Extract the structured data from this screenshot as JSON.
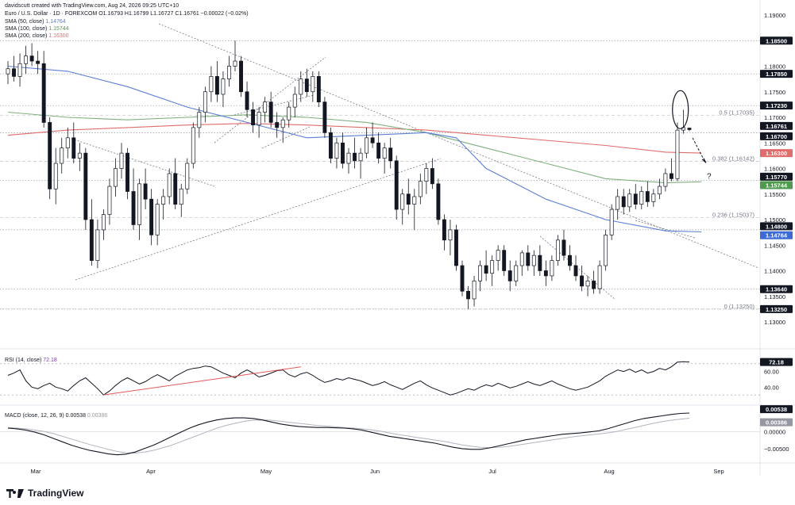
{
  "header": {
    "author_line": "davidscutt created with TradingView.com, Aug 24, 2026 09:25 UTC+10",
    "symbol_line": "Euro / U.S. Dollar · 1D · FOREXCOM  O1.16793  H1.16799  L1.16727  C1.16761  −0.00022 (−0.02%)",
    "sma_50": "SMA (50, close)",
    "sma_50_value": "1.14764",
    "sma_100": "SMA (100, close)",
    "sma_100_value": "1.15744",
    "sma_200": "SMA (200, close)",
    "sma_200_value": "1.16300"
  },
  "brand": {
    "name": "TradingView",
    "icon": "tradingview-logo-icon"
  },
  "colors": {
    "up": "#ffffff",
    "down": "#131722",
    "sma50": "#5b7fd6",
    "sma100": "#7fb07f",
    "sma200": "#e06c6c",
    "rsi_trend": "#e05a5a"
  },
  "chart_data": [
    {
      "type": "candlestick",
      "ylim": [
        1.13,
        1.19
      ],
      "y_ticks": [
        "1.19000",
        "1.18000",
        "1.17500",
        "1.17000",
        "1.16500",
        "1.16000",
        "1.15500",
        "1.15000",
        "1.14500",
        "1.14000",
        "1.13500",
        "1.13000"
      ],
      "x_ticks": [
        "Mar",
        "Apr",
        "May",
        "Jun",
        "Jul",
        "Aug",
        "Sep"
      ],
      "price_labels": [
        {
          "value": "1.18500",
          "style": "dark"
        },
        {
          "value": "1.17850",
          "style": "dark"
        },
        {
          "value": "1.17230",
          "style": "dark"
        },
        {
          "value": "1.16761",
          "style": "dark"
        },
        {
          "value": "1.16700",
          "style": "dark"
        },
        {
          "value": "1.16300",
          "style": "red"
        },
        {
          "value": "1.15770",
          "style": "dark"
        },
        {
          "value": "1.15744",
          "style": "green"
        },
        {
          "value": "1.14800",
          "style": "dark"
        },
        {
          "value": "1.14764",
          "style": "blue"
        },
        {
          "value": "1.13640",
          "style": "dark"
        },
        {
          "value": "1.13250",
          "style": "dark"
        }
      ],
      "horizontal_levels": [
        1.185,
        1.1785,
        1.1723,
        1.167,
        1.1577,
        1.148,
        1.1364,
        1.1325
      ],
      "fib_levels": [
        {
          "label": "0.5 (1.17035)",
          "value": 1.17035
        },
        {
          "label": "0.382 (1.16142)",
          "value": 1.16142
        },
        {
          "label": "0.236 (1.15037)",
          "value": 1.15037
        },
        {
          "label": "0 (1.13250)",
          "value": 1.1325
        }
      ],
      "annotation": "?",
      "candles": [
        [
          1.1785,
          1.181,
          1.1765,
          1.1795
        ],
        [
          1.1795,
          1.182,
          1.177,
          1.178
        ],
        [
          1.178,
          1.1825,
          1.176,
          1.1805
        ],
        [
          1.1805,
          1.184,
          1.1785,
          1.182
        ],
        [
          1.182,
          1.1845,
          1.18,
          1.181
        ],
        [
          1.181,
          1.183,
          1.1785,
          1.1805
        ],
        [
          1.1805,
          1.183,
          1.168,
          1.169
        ],
        [
          1.169,
          1.17,
          1.154,
          1.156
        ],
        [
          1.156,
          1.164,
          1.153,
          1.161
        ],
        [
          1.161,
          1.166,
          1.159,
          1.164
        ],
        [
          1.164,
          1.168,
          1.162,
          1.166
        ],
        [
          1.166,
          1.169,
          1.161,
          1.162
        ],
        [
          1.162,
          1.165,
          1.1595,
          1.163
        ],
        [
          1.163,
          1.164,
          1.148,
          1.15
        ],
        [
          1.15,
          1.154,
          1.141,
          1.142
        ],
        [
          1.142,
          1.15,
          1.1405,
          1.148
        ],
        [
          1.148,
          1.152,
          1.146,
          1.151
        ],
        [
          1.151,
          1.158,
          1.149,
          1.1565
        ],
        [
          1.1565,
          1.162,
          1.1545,
          1.16
        ],
        [
          1.16,
          1.165,
          1.158,
          1.163
        ],
        [
          1.163,
          1.164,
          1.154,
          1.1555
        ],
        [
          1.1555,
          1.16,
          1.148,
          1.149
        ],
        [
          1.149,
          1.158,
          1.146,
          1.157
        ],
        [
          1.157,
          1.16,
          1.152,
          1.154
        ],
        [
          1.154,
          1.156,
          1.145,
          1.147
        ],
        [
          1.147,
          1.154,
          1.145,
          1.153
        ],
        [
          1.153,
          1.156,
          1.15,
          1.1545
        ],
        [
          1.1545,
          1.16,
          1.153,
          1.159
        ],
        [
          1.159,
          1.162,
          1.152,
          1.153
        ],
        [
          1.153,
          1.157,
          1.1505,
          1.156
        ],
        [
          1.156,
          1.162,
          1.155,
          1.161
        ],
        [
          1.161,
          1.169,
          1.16,
          1.168
        ],
        [
          1.168,
          1.172,
          1.166,
          1.171
        ],
        [
          1.171,
          1.176,
          1.169,
          1.175
        ],
        [
          1.175,
          1.18,
          1.173,
          1.178
        ],
        [
          1.178,
          1.181,
          1.173,
          1.1745
        ],
        [
          1.1745,
          1.179,
          1.172,
          1.1775
        ],
        [
          1.1775,
          1.182,
          1.176,
          1.18
        ],
        [
          1.18,
          1.185,
          1.179,
          1.181
        ],
        [
          1.181,
          1.182,
          1.174,
          1.175
        ],
        [
          1.175,
          1.177,
          1.17,
          1.1715
        ],
        [
          1.1715,
          1.173,
          1.167,
          1.1685
        ],
        [
          1.1685,
          1.172,
          1.166,
          1.171
        ],
        [
          1.171,
          1.174,
          1.169,
          1.173
        ],
        [
          1.173,
          1.175,
          1.168,
          1.169
        ],
        [
          1.169,
          1.171,
          1.166,
          1.168
        ],
        [
          1.168,
          1.17,
          1.165,
          1.1695
        ],
        [
          1.1695,
          1.173,
          1.168,
          1.172
        ],
        [
          1.172,
          1.176,
          1.17,
          1.1745
        ],
        [
          1.1745,
          1.179,
          1.173,
          1.1775
        ],
        [
          1.1775,
          1.1795,
          1.174,
          1.175
        ],
        [
          1.175,
          1.179,
          1.173,
          1.178
        ],
        [
          1.178,
          1.179,
          1.172,
          1.173
        ],
        [
          1.173,
          1.174,
          1.166,
          1.167
        ],
        [
          1.167,
          1.168,
          1.161,
          1.162
        ],
        [
          1.162,
          1.166,
          1.16,
          1.165
        ],
        [
          1.165,
          1.167,
          1.16,
          1.161
        ],
        [
          1.161,
          1.164,
          1.159,
          1.163
        ],
        [
          1.163,
          1.166,
          1.16,
          1.1615
        ],
        [
          1.1615,
          1.164,
          1.158,
          1.163
        ],
        [
          1.163,
          1.168,
          1.162,
          1.166
        ],
        [
          1.166,
          1.169,
          1.164,
          1.165
        ],
        [
          1.165,
          1.167,
          1.161,
          1.162
        ],
        [
          1.162,
          1.165,
          1.159,
          1.164
        ],
        [
          1.164,
          1.166,
          1.16,
          1.1615
        ],
        [
          1.1615,
          1.1625,
          1.15,
          1.152
        ],
        [
          1.152,
          1.156,
          1.149,
          1.155
        ],
        [
          1.155,
          1.158,
          1.151,
          1.153
        ],
        [
          1.153,
          1.156,
          1.148,
          1.1545
        ],
        [
          1.1545,
          1.159,
          1.153,
          1.1575
        ],
        [
          1.1575,
          1.161,
          1.155,
          1.16
        ],
        [
          1.16,
          1.162,
          1.156,
          1.157
        ],
        [
          1.157,
          1.158,
          1.149,
          1.15
        ],
        [
          1.15,
          1.151,
          1.144,
          1.146
        ],
        [
          1.146,
          1.15,
          1.143,
          1.148
        ],
        [
          1.148,
          1.149,
          1.14,
          1.141
        ],
        [
          1.141,
          1.142,
          1.135,
          1.136
        ],
        [
          1.136,
          1.137,
          1.1325,
          1.1345
        ],
        [
          1.1345,
          1.139,
          1.133,
          1.138
        ],
        [
          1.138,
          1.142,
          1.136,
          1.141
        ],
        [
          1.141,
          1.144,
          1.138,
          1.1395
        ],
        [
          1.1395,
          1.143,
          1.137,
          1.142
        ],
        [
          1.142,
          1.145,
          1.14,
          1.144
        ],
        [
          1.144,
          1.145,
          1.139,
          1.14
        ],
        [
          1.14,
          1.142,
          1.136,
          1.138
        ],
        [
          1.138,
          1.142,
          1.137,
          1.141
        ],
        [
          1.141,
          1.144,
          1.139,
          1.1435
        ],
        [
          1.1435,
          1.145,
          1.14,
          1.141
        ],
        [
          1.141,
          1.144,
          1.139,
          1.143
        ],
        [
          1.143,
          1.145,
          1.139,
          1.14
        ],
        [
          1.14,
          1.142,
          1.137,
          1.139
        ],
        [
          1.139,
          1.143,
          1.138,
          1.142
        ],
        [
          1.142,
          1.147,
          1.141,
          1.146
        ],
        [
          1.146,
          1.148,
          1.142,
          1.143
        ],
        [
          1.143,
          1.145,
          1.14,
          1.141
        ],
        [
          1.141,
          1.143,
          1.138,
          1.139
        ],
        [
          1.139,
          1.141,
          1.136,
          1.137
        ],
        [
          1.137,
          1.139,
          1.135,
          1.138
        ],
        [
          1.138,
          1.14,
          1.1355,
          1.1365
        ],
        [
          1.1365,
          1.142,
          1.1355,
          1.141
        ],
        [
          1.141,
          1.148,
          1.14,
          1.147
        ],
        [
          1.147,
          1.153,
          1.146,
          1.152
        ],
        [
          1.152,
          1.156,
          1.15,
          1.1545
        ],
        [
          1.1545,
          1.156,
          1.151,
          1.1525
        ],
        [
          1.1525,
          1.156,
          1.1515,
          1.155
        ],
        [
          1.155,
          1.157,
          1.152,
          1.153
        ],
        [
          1.153,
          1.1565,
          1.152,
          1.1555
        ],
        [
          1.1555,
          1.1575,
          1.1525,
          1.1535
        ],
        [
          1.1535,
          1.156,
          1.1525,
          1.155
        ],
        [
          1.155,
          1.158,
          1.154,
          1.1565
        ],
        [
          1.1565,
          1.16,
          1.1555,
          1.159
        ],
        [
          1.159,
          1.162,
          1.1575,
          1.158
        ],
        [
          1.158,
          1.169,
          1.1575,
          1.1675
        ],
        [
          1.1675,
          1.1715,
          1.1668,
          1.168
        ],
        [
          1.1679,
          1.168,
          1.1673,
          1.1676
        ]
      ],
      "sma50_points": [
        [
          0,
          1.18
        ],
        [
          10,
          1.179
        ],
        [
          20,
          1.176
        ],
        [
          30,
          1.172
        ],
        [
          40,
          1.169
        ],
        [
          50,
          1.166
        ],
        [
          60,
          1.1665
        ],
        [
          70,
          1.167
        ],
        [
          75,
          1.166
        ],
        [
          80,
          1.16
        ],
        [
          90,
          1.154
        ],
        [
          100,
          1.15
        ],
        [
          110,
          1.1478
        ],
        [
          116,
          1.1476
        ]
      ],
      "sma100_points": [
        [
          0,
          1.171
        ],
        [
          10,
          1.17
        ],
        [
          20,
          1.1695
        ],
        [
          30,
          1.17
        ],
        [
          40,
          1.1705
        ],
        [
          50,
          1.17
        ],
        [
          60,
          1.169
        ],
        [
          70,
          1.167
        ],
        [
          80,
          1.164
        ],
        [
          90,
          1.161
        ],
        [
          100,
          1.158
        ],
        [
          110,
          1.1572
        ],
        [
          116,
          1.1574
        ]
      ],
      "sma200_points": [
        [
          0,
          1.1665
        ],
        [
          10,
          1.1675
        ],
        [
          20,
          1.168
        ],
        [
          30,
          1.1685
        ],
        [
          40,
          1.1688
        ],
        [
          50,
          1.1685
        ],
        [
          60,
          1.168
        ],
        [
          70,
          1.1675
        ],
        [
          80,
          1.1665
        ],
        [
          90,
          1.1655
        ],
        [
          100,
          1.1645
        ],
        [
          110,
          1.1632
        ],
        [
          116,
          1.163
        ]
      ]
    },
    {
      "type": "line",
      "title": "RSI (14, close)",
      "value": "72.18",
      "ylim": [
        20,
        85
      ],
      "y_ticks": [
        "60.00",
        "40.00"
      ],
      "levels": [
        70,
        30
      ],
      "values": [
        55,
        58,
        62,
        48,
        40,
        38,
        42,
        45,
        40,
        38,
        35,
        42,
        48,
        52,
        45,
        38,
        30,
        35,
        42,
        48,
        52,
        48,
        44,
        47,
        52,
        56,
        52,
        48,
        54,
        58,
        62,
        64,
        65,
        67,
        66,
        62,
        58,
        55,
        52,
        58,
        62,
        58,
        53,
        55,
        58,
        61,
        62,
        56,
        53,
        57,
        59,
        55,
        50,
        46,
        48,
        51,
        49,
        52,
        50,
        48,
        45,
        42,
        44,
        47,
        43,
        40,
        37,
        41,
        45,
        48,
        43,
        39,
        36,
        33,
        30,
        32,
        35,
        38,
        36,
        40,
        43,
        41,
        45,
        42,
        39,
        41,
        44,
        47,
        44,
        42,
        45,
        48,
        44,
        41,
        38,
        36,
        38,
        40,
        44,
        48,
        54,
        58,
        62,
        60,
        63,
        59,
        62,
        58,
        60,
        64,
        62,
        66,
        72,
        72.5,
        72.2
      ]
    },
    {
      "type": "line",
      "title": "MACD (close, 12, 26, 9)",
      "value": "0.00538",
      "signal": "0.00386",
      "ylim": [
        -0.0085,
        0.0068
      ],
      "y_ticks": [
        "0.00000",
        "−0.00500"
      ],
      "x_ticks": [
        "Mar",
        "Apr",
        "May",
        "Jun",
        "Jul",
        "Aug",
        "Sep"
      ],
      "macd_values": [
        0.001,
        0.0008,
        0.0004,
        -0.0002,
        -0.001,
        -0.002,
        -0.003,
        -0.004,
        -0.0048,
        -0.0055,
        -0.006,
        -0.0065,
        -0.0068,
        -0.0066,
        -0.006,
        -0.005,
        -0.004,
        -0.0028,
        -0.0015,
        -0.0002,
        0.001,
        0.002,
        0.0028,
        0.0034,
        0.0038,
        0.004,
        0.004,
        0.0038,
        0.0034,
        0.0028,
        0.0022,
        0.0018,
        0.0015,
        0.0013,
        0.0012,
        0.0012,
        0.0011,
        0.001,
        0.0008,
        0.0004,
        -0.0002,
        -0.0008,
        -0.0014,
        -0.0018,
        -0.0022,
        -0.0026,
        -0.003,
        -0.0034,
        -0.004,
        -0.0046,
        -0.005,
        -0.0052,
        -0.0052,
        -0.0048,
        -0.0042,
        -0.0036,
        -0.003,
        -0.0024,
        -0.002,
        -0.0016,
        -0.0012,
        -0.0008,
        -0.0006,
        -0.0004,
        -0.0001,
        0.0002,
        0.0008,
        0.0016,
        0.0024,
        0.0032,
        0.0038,
        0.0042,
        0.0046,
        0.005,
        0.0053,
        0.0054
      ],
      "signal_values": [
        0.0012,
        0.001,
        0.0008,
        0.0004,
        0.0,
        -0.0006,
        -0.0014,
        -0.0022,
        -0.003,
        -0.0038,
        -0.0045,
        -0.0052,
        -0.0058,
        -0.0062,
        -0.0063,
        -0.006,
        -0.0055,
        -0.0048,
        -0.004,
        -0.003,
        -0.002,
        -0.001,
        0.0,
        0.001,
        0.0018,
        0.0024,
        0.003,
        0.0033,
        0.0034,
        0.0033,
        0.003,
        0.0027,
        0.0024,
        0.0021,
        0.0018,
        0.0016,
        0.0014,
        0.0012,
        0.001,
        0.0008,
        0.0005,
        0.0001,
        -0.0004,
        -0.0009,
        -0.0013,
        -0.0017,
        -0.0021,
        -0.0025,
        -0.0029,
        -0.0034,
        -0.0039,
        -0.0043,
        -0.0046,
        -0.0047,
        -0.0046,
        -0.0044,
        -0.004,
        -0.0036,
        -0.0032,
        -0.0028,
        -0.0024,
        -0.002,
        -0.0016,
        -0.0013,
        -0.001,
        -0.0007,
        -0.0004,
        0.0,
        0.0006,
        0.0012,
        0.0018,
        0.0024,
        0.0029,
        0.0033,
        0.0036,
        0.0039
      ]
    }
  ]
}
